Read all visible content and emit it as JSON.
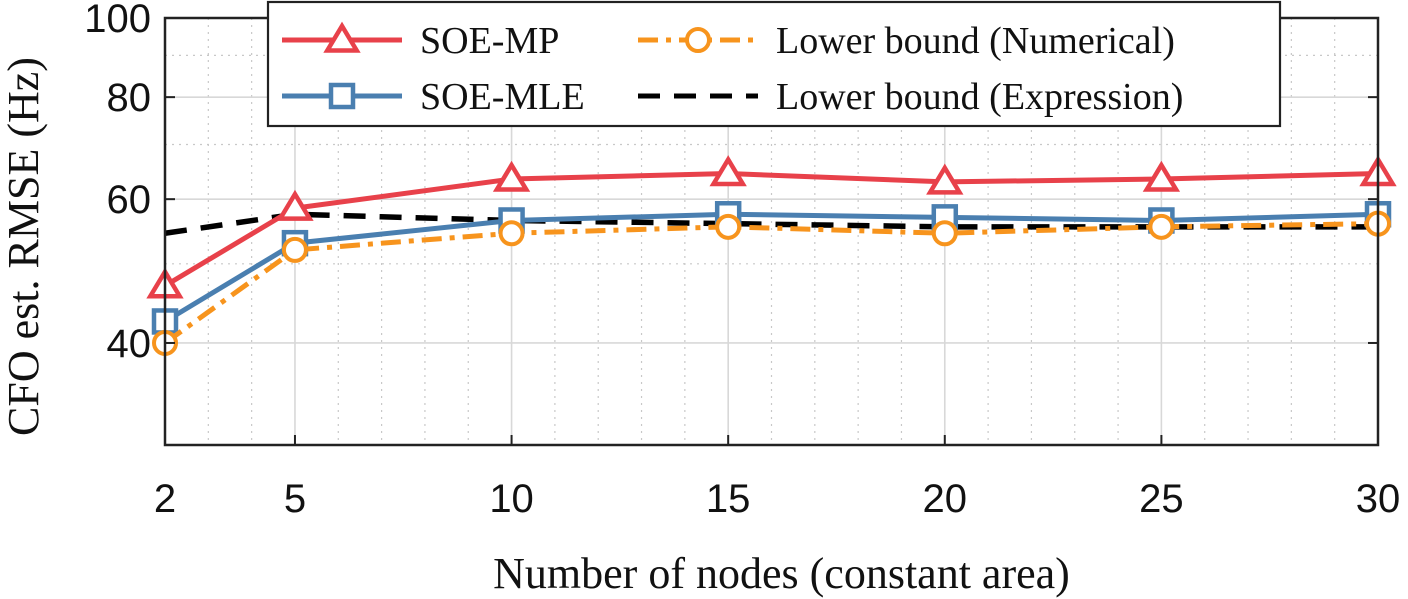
{
  "chart_data": {
    "type": "line",
    "title": "",
    "xlabel": "Number of nodes (constant area)",
    "ylabel": "CFO est. RMSE (Hz)",
    "x": [
      2,
      5,
      10,
      15,
      20,
      25,
      30
    ],
    "x_tick_labels": [
      "2",
      "5",
      "10",
      "15",
      "20",
      "25",
      "30"
    ],
    "xlim": [
      2,
      30
    ],
    "ylim": [
      30,
      100
    ],
    "y_scale": "log",
    "y_tick_values": [
      40,
      60,
      80,
      100
    ],
    "y_tick_labels": [
      "40",
      "60",
      "80",
      "100"
    ],
    "grid": true,
    "minor_grid": true,
    "legend_position": "top-right",
    "series": [
      {
        "name": "SOE-MP",
        "color": "#e8414a",
        "line": "solid",
        "marker": "triangle",
        "values": [
          47,
          58.5,
          63.5,
          64.5,
          63,
          63.5,
          64.5
        ]
      },
      {
        "name": "Lower bound (Numerical)",
        "color": "#f7941d",
        "line": "dashdot",
        "marker": "circle",
        "values": [
          40,
          52,
          54.5,
          55.5,
          54.5,
          55.5,
          56
        ]
      },
      {
        "name": "SOE-MLE",
        "color": "#4a7fb0",
        "line": "solid",
        "marker": "square",
        "values": [
          42.5,
          53,
          56.5,
          57.5,
          57,
          56.5,
          57.5
        ]
      },
      {
        "name": "Lower bound (Expression)",
        "color": "#000000",
        "line": "dashed",
        "marker": "none",
        "values": [
          54.5,
          57.5,
          56.5,
          56,
          55.5,
          55.5,
          55.5
        ]
      }
    ]
  }
}
